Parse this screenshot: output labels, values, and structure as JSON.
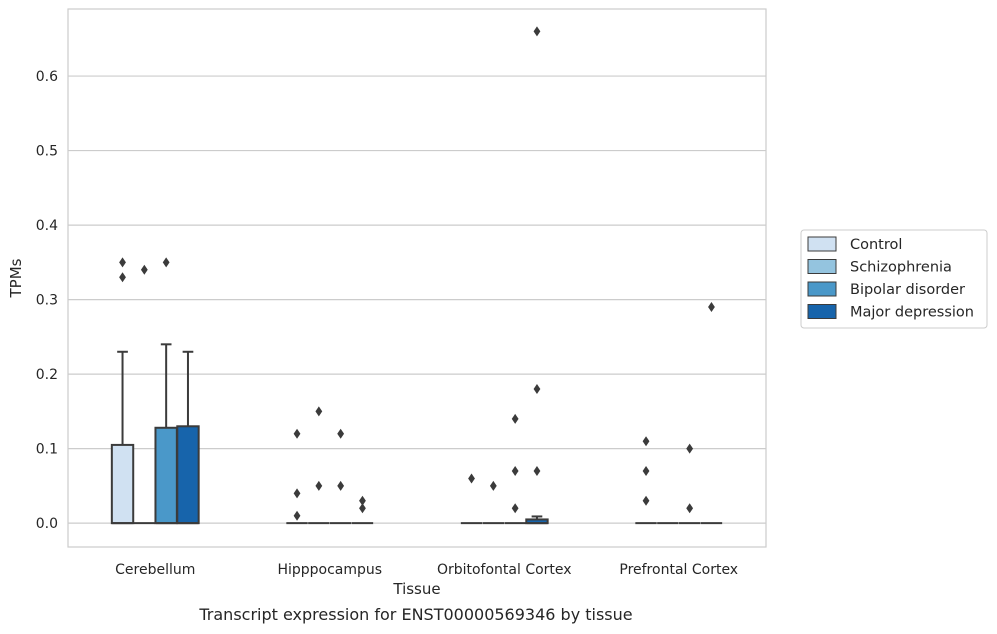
{
  "caption": "Transcript expression for ENST00000569346 by tissue",
  "chart_data": {
    "type": "box",
    "xlabel": "Tissue",
    "ylabel": "TPMs",
    "ylim": [
      -0.032,
      0.69
    ],
    "yticks": [
      0.0,
      0.1,
      0.2,
      0.3,
      0.4,
      0.5,
      0.6
    ],
    "ytick_labels": [
      "0.0",
      "0.1",
      "0.2",
      "0.3",
      "0.4",
      "0.5",
      "0.6"
    ],
    "categories": [
      "Cerebellum",
      "Hipppocampus",
      "Orbitofontal Cortex",
      "Prefrontal Cortex"
    ],
    "grid": "horizontal",
    "legend_position": "right",
    "series": [
      {
        "name": "Control",
        "color": "#d0e1f2",
        "boxes": [
          {
            "q1": 0.0,
            "median": 0.0,
            "q3": 0.105,
            "whislo": 0.0,
            "whishi": 0.23,
            "fliers": [
              0.33,
              0.35
            ]
          },
          {
            "q1": 0.0,
            "median": 0.0,
            "q3": 0.0,
            "whislo": 0.0,
            "whishi": 0.0,
            "fliers": [
              0.01,
              0.04,
              0.12
            ]
          },
          {
            "q1": 0.0,
            "median": 0.0,
            "q3": 0.0,
            "whislo": 0.0,
            "whishi": 0.0,
            "fliers": [
              0.06
            ]
          },
          {
            "q1": 0.0,
            "median": 0.0,
            "q3": 0.0,
            "whislo": 0.0,
            "whishi": 0.0,
            "fliers": [
              0.03,
              0.07,
              0.11
            ]
          }
        ]
      },
      {
        "name": "Schizophrenia",
        "color": "#94c4df",
        "boxes": [
          {
            "q1": 0.0,
            "median": 0.0,
            "q3": 0.0,
            "whislo": 0.0,
            "whishi": 0.0,
            "fliers": [
              0.34
            ]
          },
          {
            "q1": 0.0,
            "median": 0.0,
            "q3": 0.0,
            "whislo": 0.0,
            "whishi": 0.0,
            "fliers": [
              0.05,
              0.15
            ]
          },
          {
            "q1": 0.0,
            "median": 0.0,
            "q3": 0.0,
            "whislo": 0.0,
            "whishi": 0.0,
            "fliers": [
              0.05
            ]
          },
          {
            "q1": 0.0,
            "median": 0.0,
            "q3": 0.0,
            "whislo": 0.0,
            "whishi": 0.0,
            "fliers": []
          }
        ]
      },
      {
        "name": "Bipolar disorder",
        "color": "#4a98c9",
        "boxes": [
          {
            "q1": 0.0,
            "median": 0.0,
            "q3": 0.128,
            "whislo": 0.0,
            "whishi": 0.24,
            "fliers": [
              0.35
            ]
          },
          {
            "q1": 0.0,
            "median": 0.0,
            "q3": 0.0,
            "whislo": 0.0,
            "whishi": 0.0,
            "fliers": [
              0.05,
              0.12
            ]
          },
          {
            "q1": 0.0,
            "median": 0.0,
            "q3": 0.0,
            "whislo": 0.0,
            "whishi": 0.0,
            "fliers": [
              0.02,
              0.07,
              0.14
            ]
          },
          {
            "q1": 0.0,
            "median": 0.0,
            "q3": 0.0,
            "whislo": 0.0,
            "whishi": 0.0,
            "fliers": [
              0.02,
              0.1
            ]
          }
        ]
      },
      {
        "name": "Major depression",
        "color": "#1764ab",
        "boxes": [
          {
            "q1": 0.0,
            "median": 0.0,
            "q3": 0.13,
            "whislo": 0.0,
            "whishi": 0.23,
            "fliers": []
          },
          {
            "q1": 0.0,
            "median": 0.0,
            "q3": 0.0,
            "whislo": 0.0,
            "whishi": 0.0,
            "fliers": [
              0.02,
              0.03
            ]
          },
          {
            "q1": 0.0,
            "median": 0.0,
            "q3": 0.005,
            "whislo": 0.0,
            "whishi": 0.009,
            "fliers": [
              0.07,
              0.18,
              0.66
            ]
          },
          {
            "q1": 0.0,
            "median": 0.0,
            "q3": 0.0,
            "whislo": 0.0,
            "whishi": 0.0,
            "fliers": [
              0.29
            ]
          }
        ]
      }
    ]
  }
}
